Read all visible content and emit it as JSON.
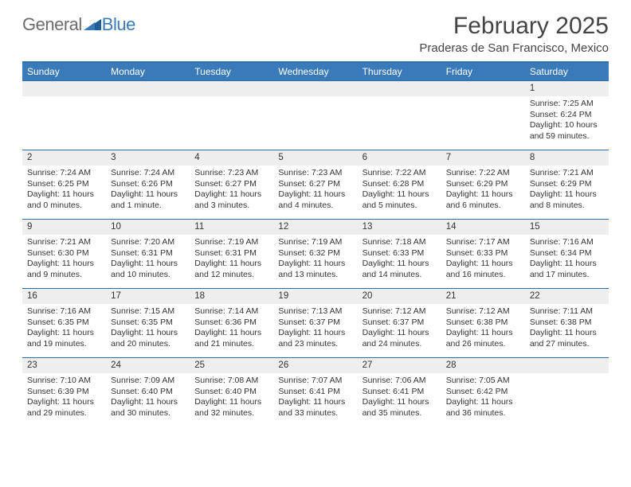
{
  "logo": {
    "general": "General",
    "blue": "Blue"
  },
  "header": {
    "month_title": "February 2025",
    "location": "Praderas de San Francisco, Mexico"
  },
  "colors": {
    "header_bar": "#3a7ab8",
    "rule": "#2f6fa8",
    "day_num_bg": "#eeeeee",
    "text": "#333333",
    "bg": "#ffffff"
  },
  "days_of_week": [
    "Sunday",
    "Monday",
    "Tuesday",
    "Wednesday",
    "Thursday",
    "Friday",
    "Saturday"
  ],
  "weeks": [
    [
      {
        "n": "",
        "sr": "",
        "ss": "",
        "dl": ""
      },
      {
        "n": "",
        "sr": "",
        "ss": "",
        "dl": ""
      },
      {
        "n": "",
        "sr": "",
        "ss": "",
        "dl": ""
      },
      {
        "n": "",
        "sr": "",
        "ss": "",
        "dl": ""
      },
      {
        "n": "",
        "sr": "",
        "ss": "",
        "dl": ""
      },
      {
        "n": "",
        "sr": "",
        "ss": "",
        "dl": ""
      },
      {
        "n": "1",
        "sr": "Sunrise: 7:25 AM",
        "ss": "Sunset: 6:24 PM",
        "dl": "Daylight: 10 hours and 59 minutes."
      }
    ],
    [
      {
        "n": "2",
        "sr": "Sunrise: 7:24 AM",
        "ss": "Sunset: 6:25 PM",
        "dl": "Daylight: 11 hours and 0 minutes."
      },
      {
        "n": "3",
        "sr": "Sunrise: 7:24 AM",
        "ss": "Sunset: 6:26 PM",
        "dl": "Daylight: 11 hours and 1 minute."
      },
      {
        "n": "4",
        "sr": "Sunrise: 7:23 AM",
        "ss": "Sunset: 6:27 PM",
        "dl": "Daylight: 11 hours and 3 minutes."
      },
      {
        "n": "5",
        "sr": "Sunrise: 7:23 AM",
        "ss": "Sunset: 6:27 PM",
        "dl": "Daylight: 11 hours and 4 minutes."
      },
      {
        "n": "6",
        "sr": "Sunrise: 7:22 AM",
        "ss": "Sunset: 6:28 PM",
        "dl": "Daylight: 11 hours and 5 minutes."
      },
      {
        "n": "7",
        "sr": "Sunrise: 7:22 AM",
        "ss": "Sunset: 6:29 PM",
        "dl": "Daylight: 11 hours and 6 minutes."
      },
      {
        "n": "8",
        "sr": "Sunrise: 7:21 AM",
        "ss": "Sunset: 6:29 PM",
        "dl": "Daylight: 11 hours and 8 minutes."
      }
    ],
    [
      {
        "n": "9",
        "sr": "Sunrise: 7:21 AM",
        "ss": "Sunset: 6:30 PM",
        "dl": "Daylight: 11 hours and 9 minutes."
      },
      {
        "n": "10",
        "sr": "Sunrise: 7:20 AM",
        "ss": "Sunset: 6:31 PM",
        "dl": "Daylight: 11 hours and 10 minutes."
      },
      {
        "n": "11",
        "sr": "Sunrise: 7:19 AM",
        "ss": "Sunset: 6:31 PM",
        "dl": "Daylight: 11 hours and 12 minutes."
      },
      {
        "n": "12",
        "sr": "Sunrise: 7:19 AM",
        "ss": "Sunset: 6:32 PM",
        "dl": "Daylight: 11 hours and 13 minutes."
      },
      {
        "n": "13",
        "sr": "Sunrise: 7:18 AM",
        "ss": "Sunset: 6:33 PM",
        "dl": "Daylight: 11 hours and 14 minutes."
      },
      {
        "n": "14",
        "sr": "Sunrise: 7:17 AM",
        "ss": "Sunset: 6:33 PM",
        "dl": "Daylight: 11 hours and 16 minutes."
      },
      {
        "n": "15",
        "sr": "Sunrise: 7:16 AM",
        "ss": "Sunset: 6:34 PM",
        "dl": "Daylight: 11 hours and 17 minutes."
      }
    ],
    [
      {
        "n": "16",
        "sr": "Sunrise: 7:16 AM",
        "ss": "Sunset: 6:35 PM",
        "dl": "Daylight: 11 hours and 19 minutes."
      },
      {
        "n": "17",
        "sr": "Sunrise: 7:15 AM",
        "ss": "Sunset: 6:35 PM",
        "dl": "Daylight: 11 hours and 20 minutes."
      },
      {
        "n": "18",
        "sr": "Sunrise: 7:14 AM",
        "ss": "Sunset: 6:36 PM",
        "dl": "Daylight: 11 hours and 21 minutes."
      },
      {
        "n": "19",
        "sr": "Sunrise: 7:13 AM",
        "ss": "Sunset: 6:37 PM",
        "dl": "Daylight: 11 hours and 23 minutes."
      },
      {
        "n": "20",
        "sr": "Sunrise: 7:12 AM",
        "ss": "Sunset: 6:37 PM",
        "dl": "Daylight: 11 hours and 24 minutes."
      },
      {
        "n": "21",
        "sr": "Sunrise: 7:12 AM",
        "ss": "Sunset: 6:38 PM",
        "dl": "Daylight: 11 hours and 26 minutes."
      },
      {
        "n": "22",
        "sr": "Sunrise: 7:11 AM",
        "ss": "Sunset: 6:38 PM",
        "dl": "Daylight: 11 hours and 27 minutes."
      }
    ],
    [
      {
        "n": "23",
        "sr": "Sunrise: 7:10 AM",
        "ss": "Sunset: 6:39 PM",
        "dl": "Daylight: 11 hours and 29 minutes."
      },
      {
        "n": "24",
        "sr": "Sunrise: 7:09 AM",
        "ss": "Sunset: 6:40 PM",
        "dl": "Daylight: 11 hours and 30 minutes."
      },
      {
        "n": "25",
        "sr": "Sunrise: 7:08 AM",
        "ss": "Sunset: 6:40 PM",
        "dl": "Daylight: 11 hours and 32 minutes."
      },
      {
        "n": "26",
        "sr": "Sunrise: 7:07 AM",
        "ss": "Sunset: 6:41 PM",
        "dl": "Daylight: 11 hours and 33 minutes."
      },
      {
        "n": "27",
        "sr": "Sunrise: 7:06 AM",
        "ss": "Sunset: 6:41 PM",
        "dl": "Daylight: 11 hours and 35 minutes."
      },
      {
        "n": "28",
        "sr": "Sunrise: 7:05 AM",
        "ss": "Sunset: 6:42 PM",
        "dl": "Daylight: 11 hours and 36 minutes."
      },
      {
        "n": "",
        "sr": "",
        "ss": "",
        "dl": ""
      }
    ]
  ]
}
